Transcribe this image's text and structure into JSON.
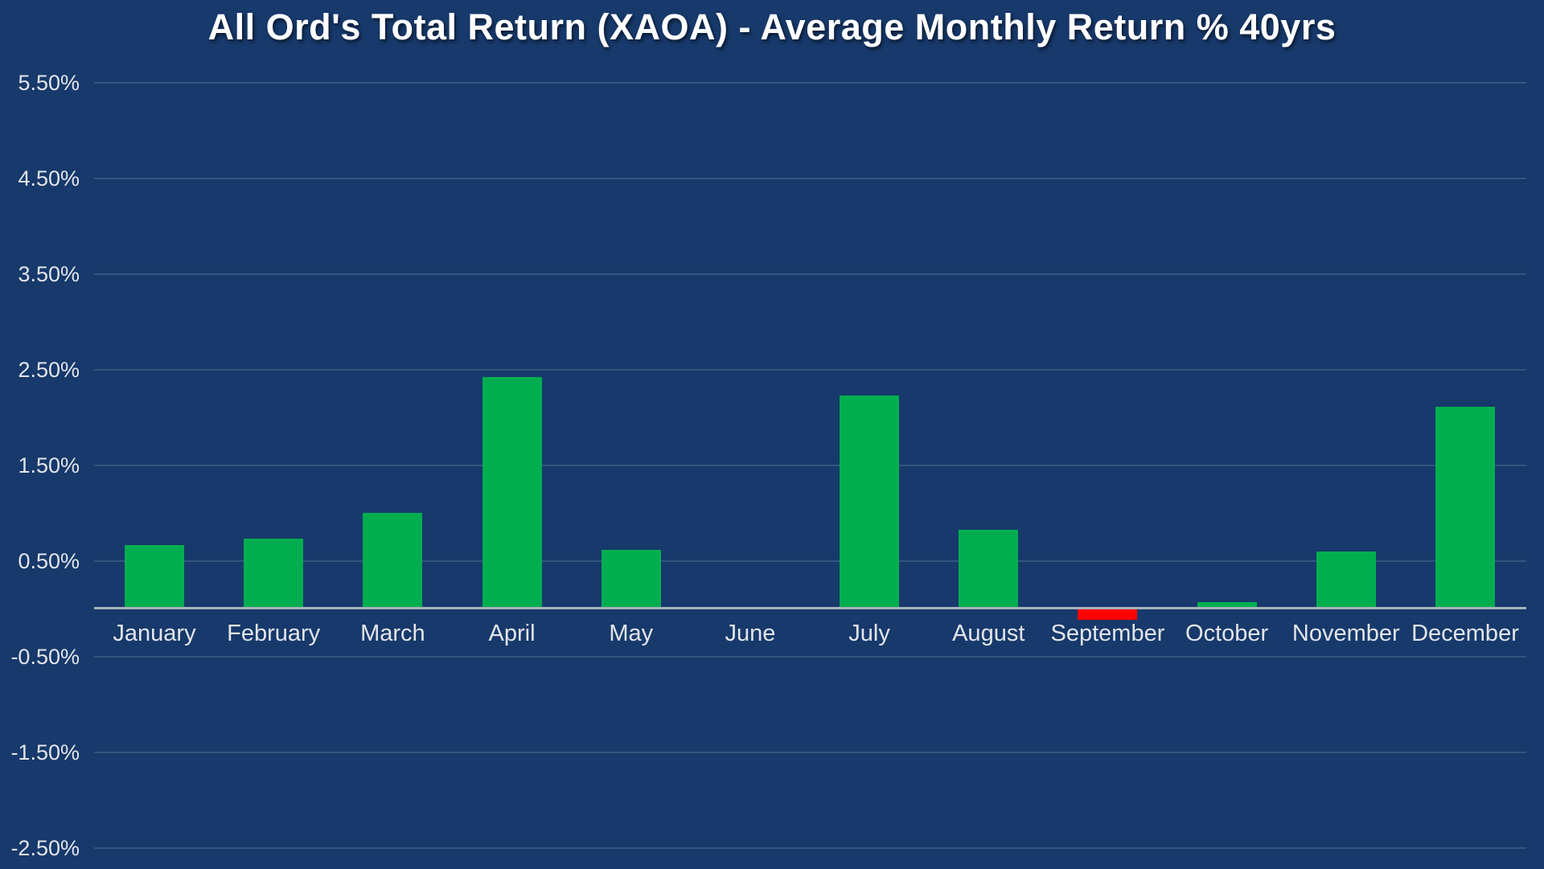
{
  "chart_data": {
    "type": "bar",
    "title": "All Ord's Total Return (XAOA) - Average Monthly Return % 40yrs",
    "categories": [
      "January",
      "February",
      "March",
      "April",
      "May",
      "June",
      "July",
      "August",
      "September",
      "October",
      "November",
      "December"
    ],
    "values": [
      0.66,
      0.73,
      1.0,
      2.42,
      0.61,
      0.02,
      2.23,
      0.82,
      -0.11,
      0.07,
      0.6,
      2.11
    ],
    "unit": "%",
    "xlabel": "",
    "ylabel": "",
    "y_ticks": [
      {
        "value": 5.5,
        "label": "5.50%"
      },
      {
        "value": 4.5,
        "label": "4.50%"
      },
      {
        "value": 3.5,
        "label": "3.50%"
      },
      {
        "value": 2.5,
        "label": "2.50%"
      },
      {
        "value": 1.5,
        "label": "1.50%"
      },
      {
        "value": 0.5,
        "label": "0.50%"
      },
      {
        "value": -0.5,
        "label": "-0.50%"
      },
      {
        "value": -1.5,
        "label": "-1.50%"
      },
      {
        "value": -2.5,
        "label": "-2.50%"
      }
    ],
    "ylim": [
      -2.7,
      6.3
    ],
    "grid": true,
    "legend": false
  },
  "colors": {
    "background": "#17396B",
    "gridline": "#35547F",
    "zero_axis": "#A9B2BD",
    "positive_bar": "#00AE50",
    "negative_bar": "#FF0000",
    "tick_label": "#E2E5EA",
    "month_label": "#E2E5EA",
    "title": "#FFFFFF"
  }
}
